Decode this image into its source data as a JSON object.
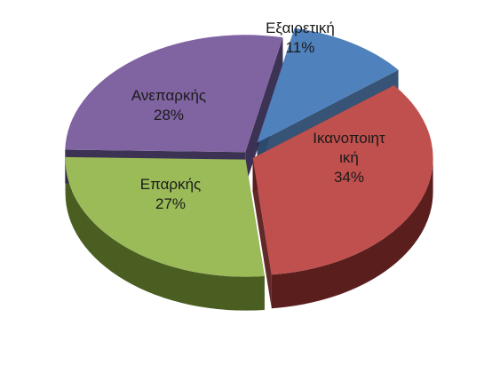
{
  "chart_data": {
    "type": "pie",
    "style": "3d-exploded",
    "title": "",
    "legend": "none",
    "slices": [
      {
        "label": "Εξαιρετική",
        "label_lines": [
          "Εξαιρετική"
        ],
        "percent_label": "11%",
        "value": 11,
        "color": "#4F81BD",
        "side_color": "#2C4A6E"
      },
      {
        "label": "Ικανοποιητική",
        "label_lines": [
          "Ικανοποιητ",
          "ική"
        ],
        "percent_label": "34%",
        "value": 34,
        "color": "#C0504D",
        "side_color": "#5A1E1D"
      },
      {
        "label": "Επαρκής",
        "label_lines": [
          "Επαρκής"
        ],
        "percent_label": "27%",
        "value": 27,
        "color": "#9BBB59",
        "side_color": "#4A5E22"
      },
      {
        "label": "Ανεπαρκής",
        "label_lines": [
          "Ανεπαρκής"
        ],
        "percent_label": "28%",
        "value": 28,
        "color": "#8064A2",
        "side_color": "#32274A"
      }
    ]
  }
}
